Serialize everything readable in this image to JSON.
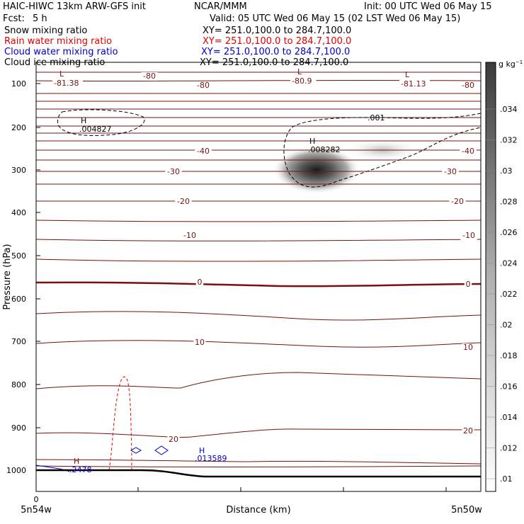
{
  "header": {
    "title_left": "HAIC-HIWC 13km ARW-GFS init",
    "org": "NCAR/MMM",
    "init": "Init: 00 UTC Wed 06 May 15",
    "fcst_label": "Fcst:",
    "fcst_value": "5 h",
    "valid": "Valid: 05 UTC Wed 06 May 15 (02 LST Wed 06 May 15)"
  },
  "fields": [
    {
      "name": "Snow mixing ratio",
      "xy": "XY= 251.0,100.0 to 284.7,100.0",
      "color": "#000000"
    },
    {
      "name": "Rain water mixing ratio",
      "xy": "XY= 251.0,100.0 to 284.7,100.0",
      "color": "#e00000"
    },
    {
      "name": "Cloud water mixing ratio",
      "xy": "XY= 251.0,100.0 to 284.7,100.0",
      "color": "#0000c8"
    },
    {
      "name": "Cloud ice mixing ratio",
      "xy": "XY= 251.0,100.0 to 284.7,100.0",
      "color": "#000000"
    }
  ],
  "chart_data": {
    "type": "heatmap",
    "ylabel": "Pressure (hPa)",
    "xlabel": "Distance (km)",
    "y_ticks": [
      "100",
      "200",
      "300",
      "400",
      "500",
      "600",
      "700",
      "800",
      "900",
      "1000"
    ],
    "x_tick_zero": "0",
    "x_left_label": "5n54w",
    "x_right_label": "5n50w",
    "ylim": [
      1030,
      50
    ],
    "colorbar": {
      "unit": "g kg",
      "unit_exp": "−1",
      "ticks": [
        ".034",
        ".032",
        ".03",
        ".028",
        ".026",
        ".024",
        ".022",
        ".02",
        ".018",
        ".016",
        ".014",
        ".012",
        ".01"
      ]
    },
    "temperature_labels": [
      "-80",
      "-80",
      "-80",
      "-40",
      "-40",
      "-30",
      "-30",
      "-20",
      "-20",
      "-10",
      "-10",
      "0",
      "0",
      "10",
      "10",
      "20",
      "20"
    ],
    "extrema": [
      {
        "type": "L",
        "value": "-81.38"
      },
      {
        "type": "L",
        "value": "-80.9"
      },
      {
        "type": "L",
        "value": "-81.13"
      },
      {
        "type": "H",
        "value": ".004827"
      },
      {
        "type": "H",
        "value": ".008282"
      },
      {
        "type": "H",
        "value": ".2478"
      },
      {
        "type": "H",
        "value": ".013589"
      }
    ],
    "contour_labels": [
      ".001"
    ],
    "colors": {
      "temperature": "#7a1010",
      "rain": "#e00000",
      "cloud_water": "#0000c8",
      "ground": "#000000"
    }
  }
}
